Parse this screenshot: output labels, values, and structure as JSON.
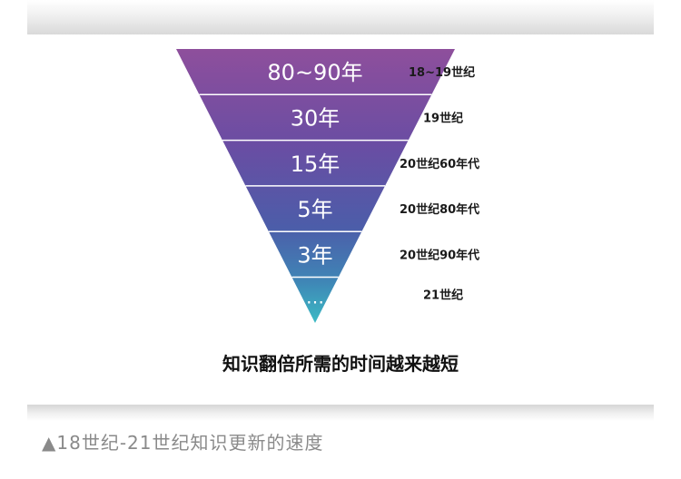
{
  "figure": {
    "subtitle": "知识翻倍所需的时间越来越短",
    "caption": "▲18世纪-21世纪知识更新的速度"
  },
  "chart_data": {
    "type": "funnel",
    "levels": [
      {
        "duration": "80~90年",
        "era": "18~19世纪",
        "color": "#8a4f9e"
      },
      {
        "duration": "30年",
        "era": "19世纪",
        "color": "#7a4da3"
      },
      {
        "duration": "15年",
        "era": "20世纪60年代",
        "color": "#5f4ea4"
      },
      {
        "duration": "5年",
        "era": "20世纪80年代",
        "color": "#4e62ab"
      },
      {
        "duration": "3年",
        "era": "20世纪90年代",
        "color": "#3f84b4"
      },
      {
        "duration": "…",
        "era": "21世纪",
        "color": "#3bb3c3"
      }
    ]
  }
}
